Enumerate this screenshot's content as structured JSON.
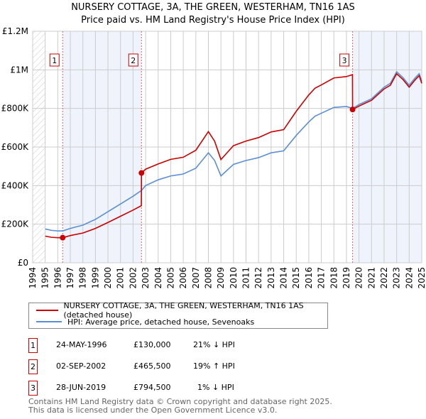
{
  "chart_data": {
    "type": "line",
    "title": "NURSERY COTTAGE, 3A, THE GREEN, WESTERHAM, TN16 1AS",
    "subtitle": "Price paid vs. HM Land Registry's House Price Index (HPI)",
    "xlim": [
      1994,
      2025
    ],
    "ylim": [
      0,
      1200000
    ],
    "x_ticks": [
      "1994",
      "1995",
      "1996",
      "1997",
      "1998",
      "1999",
      "2000",
      "2001",
      "2002",
      "2003",
      "2004",
      "2005",
      "2006",
      "2007",
      "2008",
      "2009",
      "2010",
      "2011",
      "2012",
      "2013",
      "2014",
      "2015",
      "2016",
      "2017",
      "2018",
      "2019",
      "2020",
      "2021",
      "2022",
      "2023",
      "2024",
      "2025"
    ],
    "y_ticks": [
      {
        "v": 0,
        "label": "£0"
      },
      {
        "v": 200000,
        "label": "£200K"
      },
      {
        "v": 400000,
        "label": "£400K"
      },
      {
        "v": 600000,
        "label": "£600K"
      },
      {
        "v": 800000,
        "label": "£800K"
      },
      {
        "v": 1000000,
        "label": "£1M"
      },
      {
        "v": 1200000,
        "label": "£1.2M"
      }
    ],
    "grid": true,
    "series": [
      {
        "name": "NURSERY COTTAGE, 3A, THE GREEN, WESTERHAM, TN16 1AS (detached house)",
        "color": "#cc0000",
        "x": [
          1995,
          1995.5,
          1996,
          1996.4,
          1997,
          1998,
          1999,
          2000,
          2001,
          2002,
          2002.66,
          2002.67,
          2003,
          2004,
          2005,
          2006,
          2007,
          2008,
          2008.5,
          2009,
          2009.5,
          2010,
          2011,
          2012,
          2013,
          2014,
          2015,
          2016,
          2016.5,
          2017,
          2018,
          2019,
          2019.48,
          2019.49,
          2020,
          2021,
          2022,
          2022.5,
          2023,
          2023.5,
          2024,
          2024.5,
          2024.8,
          2025
        ],
        "y": [
          138000,
          132000,
          130000,
          130000,
          141000,
          154000,
          178000,
          209000,
          241000,
          273000,
          296000,
          465500,
          485000,
          512000,
          536000,
          547000,
          583000,
          680000,
          630000,
          535000,
          571000,
          607000,
          631000,
          649000,
          678000,
          690000,
          785000,
          870000,
          905000,
          922000,
          958000,
          965000,
          975000,
          794500,
          812000,
          842000,
          901000,
          920000,
          980000,
          950000,
          910000,
          950000,
          970000,
          930000
        ]
      },
      {
        "name": "HPI: Average price, detached house, Sevenoaks",
        "color": "#5b8fd4",
        "x": [
          1995,
          1995.5,
          1996,
          1996.4,
          1997,
          1998,
          1999,
          2000,
          2001,
          2002,
          2002.67,
          2003,
          2004,
          2005,
          2006,
          2007,
          2008,
          2008.5,
          2009,
          2009.5,
          2010,
          2011,
          2012,
          2013,
          2014,
          2015,
          2016,
          2016.5,
          2017,
          2018,
          2019,
          2019.5,
          2020,
          2021,
          2022,
          2022.5,
          2023,
          2023.5,
          2024,
          2024.5,
          2024.8,
          2025
        ],
        "y": [
          175000,
          168000,
          165000,
          165000,
          178000,
          195000,
          225000,
          265000,
          305000,
          345000,
          375000,
          400000,
          430000,
          450000,
          460000,
          490000,
          570000,
          530000,
          450000,
          480000,
          510000,
          530000,
          545000,
          570000,
          580000,
          660000,
          730000,
          760000,
          775000,
          805000,
          810000,
          800000,
          820000,
          850000,
          910000,
          930000,
          990000,
          960000,
          920000,
          960000,
          980000,
          940000
        ]
      }
    ],
    "sales": [
      {
        "id": "1",
        "x": 1996.39,
        "price": 130000,
        "date": "24-MAY-1996",
        "price_label": "£130,000",
        "hpi": "21% ↓ HPI"
      },
      {
        "id": "2",
        "x": 2002.67,
        "price": 465500,
        "date": "02-SEP-2002",
        "price_label": "£465,500",
        "hpi": "19% ↑ HPI"
      },
      {
        "id": "3",
        "x": 2019.49,
        "price": 794500,
        "date": "28-JUN-2019",
        "price_label": "£794,500",
        "hpi": "1% ↓ HPI"
      }
    ],
    "legend_placement": "below"
  },
  "footer": [
    "Contains HM Land Registry data © Crown copyright and database right 2025.",
    "This data is licensed under the Open Government Licence v3.0."
  ]
}
